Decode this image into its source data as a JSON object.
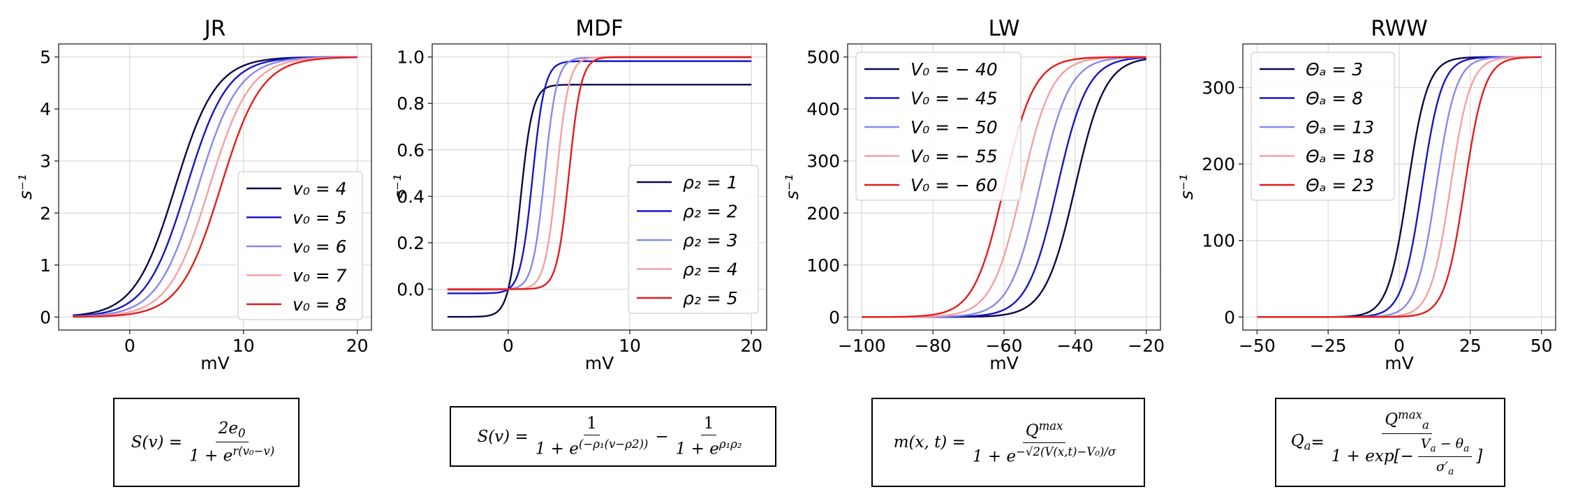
{
  "chart_data": [
    {
      "type": "line",
      "title": "JR",
      "xlabel": "mV",
      "ylabel": "s⁻¹",
      "xlim": [
        -6.25,
        21.25
      ],
      "ylim": [
        -0.25,
        5.25
      ],
      "xticks": [
        0,
        10,
        20
      ],
      "xtick_labels": [
        "0",
        "10",
        "20"
      ],
      "yticks": [
        0,
        1,
        2,
        3,
        4,
        5
      ],
      "ytick_labels": [
        "0",
        "1",
        "2",
        "3",
        "4",
        "5"
      ],
      "grid": true,
      "legend_position": "lower-right",
      "x_range": [
        -5,
        20
      ],
      "model": "jr",
      "params": {
        "e0": 2.5,
        "r": 0.56
      },
      "series": [
        {
          "name": "v₀ = 4",
          "v0": 4,
          "color": "#0a0a4a"
        },
        {
          "name": "v₀ = 5",
          "v0": 5,
          "color": "#1515c8"
        },
        {
          "name": "v₀ = 6",
          "v0": 6,
          "color": "#8888ee"
        },
        {
          "name": "v₀ = 7",
          "v0": 7,
          "color": "#f5a0a0"
        },
        {
          "name": "v₀ = 8",
          "v0": 8,
          "color": "#e51b1b"
        }
      ]
    },
    {
      "type": "line",
      "title": "MDF",
      "xlabel": "mV",
      "ylabel": "s⁻¹",
      "xlim": [
        -6.25,
        21.25
      ],
      "ylim": [
        -0.176,
        1.056
      ],
      "xticks": [
        0,
        10,
        20
      ],
      "xtick_labels": [
        "0",
        "10",
        "20"
      ],
      "yticks": [
        0,
        0.2,
        0.4,
        0.6,
        0.8,
        1.0
      ],
      "ytick_labels": [
        "0.0",
        "0.2",
        "0.4",
        "0.6",
        "0.8",
        "1.0"
      ],
      "grid": true,
      "legend_position": "lower-right",
      "x_range": [
        -5,
        20
      ],
      "model": "mdf",
      "params": {
        "rho1": 2
      },
      "series": [
        {
          "name": "ρ₂ = 1",
          "rho2": 1,
          "color": "#0a0a4a"
        },
        {
          "name": "ρ₂ = 2",
          "rho2": 2,
          "color": "#1515c8"
        },
        {
          "name": "ρ₂ = 3",
          "rho2": 3,
          "color": "#8888ee"
        },
        {
          "name": "ρ₂ = 4",
          "rho2": 4,
          "color": "#f5a0a0"
        },
        {
          "name": "ρ₂ = 5",
          "rho2": 5,
          "color": "#e51b1b"
        }
      ]
    },
    {
      "type": "line",
      "title": "LW",
      "xlabel": "mV",
      "ylabel": "s⁻¹",
      "xlim": [
        -104,
        -16
      ],
      "ylim": [
        -25,
        525
      ],
      "xticks": [
        -100,
        -80,
        -60,
        -40,
        -20
      ],
      "xtick_labels": [
        "−100",
        "−80",
        "−60",
        "−40",
        "−20"
      ],
      "yticks": [
        0,
        100,
        200,
        300,
        400,
        500
      ],
      "ytick_labels": [
        "0",
        "100",
        "200",
        "300",
        "400",
        "500"
      ],
      "grid": true,
      "legend_position": "top-left",
      "x_range": [
        -100,
        -20
      ],
      "model": "lw",
      "params": {
        "Qmax": 500,
        "sigma": 6
      },
      "series": [
        {
          "name": "V₀ = − 40",
          "V0": -40,
          "color": "#0a0a4a"
        },
        {
          "name": "V₀ = − 45",
          "V0": -45,
          "color": "#1515c8"
        },
        {
          "name": "V₀ = − 50",
          "V0": -50,
          "color": "#8888ee"
        },
        {
          "name": "V₀ = − 55",
          "V0": -55,
          "color": "#f5a0a0"
        },
        {
          "name": "V₀ = − 60",
          "V0": -60,
          "color": "#e51b1b"
        }
      ]
    },
    {
      "type": "line",
      "title": "RWW",
      "xlabel": "mV",
      "ylabel": "s⁻¹",
      "xlim": [
        -55,
        55
      ],
      "ylim": [
        -17,
        357
      ],
      "xticks": [
        -50,
        -25,
        0,
        25,
        50
      ],
      "xtick_labels": [
        "−50",
        "−25",
        "0",
        "25",
        "50"
      ],
      "yticks": [
        0,
        100,
        200,
        300
      ],
      "ytick_labels": [
        "0",
        "100",
        "200",
        "300"
      ],
      "grid": true,
      "legend_position": "top-left",
      "x_range": [
        -50,
        50
      ],
      "model": "rww",
      "params": {
        "Qmax": 340,
        "sigma": 3.5
      },
      "series": [
        {
          "name": "Θₐ = 3",
          "theta": 3,
          "color": "#0a0a4a"
        },
        {
          "name": "Θₐ = 8",
          "theta": 8,
          "color": "#1515c8"
        },
        {
          "name": "Θₐ = 13",
          "theta": 13,
          "color": "#8888ee"
        },
        {
          "name": "Θₐ = 18",
          "theta": 18,
          "color": "#f5a0a0"
        },
        {
          "name": "Θₐ = 23",
          "theta": 23,
          "color": "#e51b1b"
        }
      ]
    }
  ],
  "formulas": {
    "jr": {
      "lhs": "S(v) = ",
      "num": "2e",
      "num_sub": "0",
      "den": "1 + e",
      "den_sup": "r(v₀−v)"
    },
    "mdf": {
      "lhs": "S(v) = ",
      "num1": "1",
      "den1": "1 + e",
      "den1_sup": "(−ρ₁(v−ρ2))",
      "minus": " − ",
      "num2": "1",
      "den2": "1 + e",
      "den2_sup": "ρ₁ρ₂"
    },
    "lw": {
      "lhs": "m(x, t) = ",
      "num": "Q",
      "num_sup": "max",
      "den": "1 + e",
      "den_sup": "−√2(V(x,t)−V₀)/σ"
    },
    "rww": {
      "lhs": "Q",
      "lhs_sub": "a",
      "eq": " = ",
      "num": "Q",
      "num_sup": "max",
      "num_sub": "a",
      "den": "1 + exp[−",
      "inner_num": "V",
      "inner_num_sub": "a",
      "inner_minus": " − θ",
      "inner_num_sub2": "a",
      "inner_den": "σ′",
      "inner_den_sub": "a",
      "close": "]"
    }
  }
}
